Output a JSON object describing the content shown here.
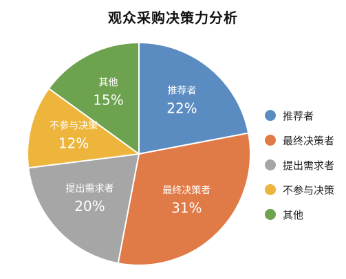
{
  "chart_data": {
    "type": "pie",
    "title": "观众采购决策力分析",
    "categories": [
      "推荐者",
      "最终决策者",
      "提出需求者",
      "不参与决策",
      "其他"
    ],
    "values": [
      22,
      31,
      20,
      12,
      15
    ],
    "value_labels": [
      "22%",
      "31%",
      "20%",
      "12%",
      "15%"
    ],
    "unit": "%",
    "colors": [
      "#5b8cc1",
      "#e07a47",
      "#a6a6a6",
      "#eeb53d",
      "#6da24f"
    ],
    "start_angle_deg": 0,
    "direction": "clockwise",
    "legend": {
      "position": "right",
      "entries": [
        "推荐者",
        "最终决策者",
        "提出需求者",
        "不参与决策",
        "其他"
      ]
    }
  }
}
